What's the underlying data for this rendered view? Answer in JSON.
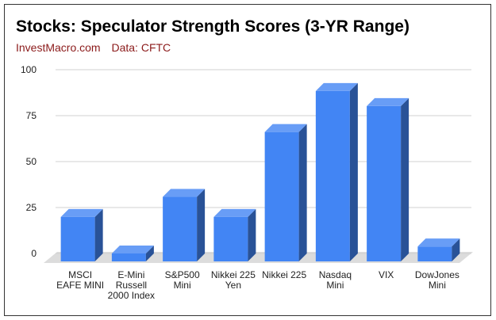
{
  "chart_data": {
    "type": "bar",
    "title": "Stocks: Speculator Strength Scores (3-YR Range)",
    "subtitle_source": "InvestMacro.com",
    "subtitle_data": "Data: CFTC",
    "categories": [
      [
        "MSCI",
        "EAFE MINI"
      ],
      [
        "E-Mini",
        "Russell",
        "2000 Index"
      ],
      [
        "S&P500",
        "Mini"
      ],
      [
        "Nikkei 225",
        "Yen"
      ],
      [
        "Nikkei 225"
      ],
      [
        "Nasdaq",
        "Mini"
      ],
      [
        "VIX"
      ],
      [
        "DowJones",
        "Mini"
      ]
    ],
    "values": [
      19.9,
      0,
      30.8,
      19.9,
      66.1,
      88.4,
      80.2,
      3.8
    ],
    "ylim": [
      0,
      100
    ],
    "yticks": [
      "0",
      "25",
      "50",
      "75",
      "100"
    ],
    "bar_color": "#4285f4",
    "grid": true,
    "legend": "none"
  }
}
